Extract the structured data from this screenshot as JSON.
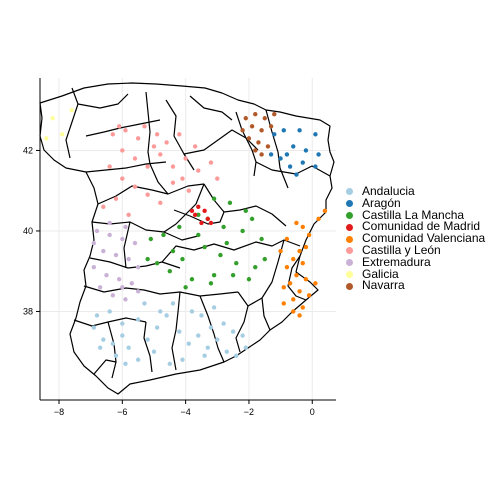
{
  "chart_data": {
    "type": "scatter",
    "title": "",
    "xlabel": "",
    "ylabel": "",
    "xlim": [
      -8.6,
      0.75
    ],
    "ylim": [
      35.8,
      43.8
    ],
    "x_ticks": [
      -8,
      -6,
      -4,
      -2,
      0
    ],
    "y_ticks": [
      38,
      40,
      42
    ],
    "x_tick_labels": [
      "−8",
      "−6",
      "−4",
      "−2",
      "0"
    ],
    "y_tick_labels": [
      "38",
      "40",
      "42"
    ],
    "grid": true,
    "legend_position": "right",
    "background": "province boundaries of mainland Spain",
    "series": [
      {
        "name": "Andalucia",
        "color": "#a6cee3",
        "points": [
          [
            -6.9,
            37.6
          ],
          [
            -6.6,
            37.3
          ],
          [
            -6.3,
            37.2
          ],
          [
            -6.0,
            37.4
          ],
          [
            -5.8,
            37.1
          ],
          [
            -6.2,
            36.9
          ],
          [
            -5.9,
            36.7
          ],
          [
            -5.5,
            36.8
          ],
          [
            -5.2,
            37.3
          ],
          [
            -4.9,
            37.6
          ],
          [
            -4.6,
            37.9
          ],
          [
            -4.2,
            37.5
          ],
          [
            -3.9,
            37.2
          ],
          [
            -3.6,
            37.4
          ],
          [
            -3.3,
            37.1
          ],
          [
            -3.0,
            37.3
          ],
          [
            -2.7,
            37.0
          ],
          [
            -2.4,
            36.9
          ],
          [
            -2.1,
            37.1
          ],
          [
            -3.8,
            38.0
          ],
          [
            -3.5,
            37.9
          ],
          [
            -3.1,
            38.1
          ],
          [
            -2.8,
            37.7
          ],
          [
            -4.4,
            38.2
          ],
          [
            -5.5,
            37.8
          ],
          [
            -6.4,
            38.0
          ],
          [
            -6.8,
            37.9
          ],
          [
            -6.0,
            37.7
          ],
          [
            -5.0,
            37.0
          ],
          [
            -4.5,
            36.7
          ],
          [
            -4.1,
            36.8
          ],
          [
            -3.4,
            36.9
          ],
          [
            -2.5,
            37.5
          ],
          [
            -2.2,
            37.4
          ],
          [
            -6.7,
            37.1
          ],
          [
            -5.3,
            38.2
          ],
          [
            -4.8,
            38.0
          ],
          [
            -3.2,
            37.6
          ]
        ]
      },
      {
        "name": "Aragón",
        "color": "#1f78b4",
        "points": [
          [
            -1.2,
            42.4
          ],
          [
            -0.9,
            42.5
          ],
          [
            -0.4,
            42.5
          ],
          [
            0.1,
            42.4
          ],
          [
            -0.6,
            42.1
          ],
          [
            -0.2,
            42.0
          ],
          [
            0.2,
            41.9
          ],
          [
            -0.8,
            41.9
          ],
          [
            -0.3,
            41.7
          ],
          [
            0.1,
            41.6
          ],
          [
            -1.3,
            41.9
          ],
          [
            -0.7,
            41.6
          ],
          [
            -0.5,
            41.4
          ],
          [
            -1.0,
            41.8
          ]
        ]
      },
      {
        "name": "Castilla La Mancha",
        "color": "#33a02c",
        "points": [
          [
            -3.1,
            40.8
          ],
          [
            -2.6,
            40.7
          ],
          [
            -2.1,
            40.5
          ],
          [
            -3.6,
            40.4
          ],
          [
            -4.2,
            40.1
          ],
          [
            -4.7,
            39.9
          ],
          [
            -5.1,
            39.8
          ],
          [
            -2.8,
            40.1
          ],
          [
            -2.2,
            40.0
          ],
          [
            -1.6,
            39.8
          ],
          [
            -3.4,
            39.6
          ],
          [
            -2.9,
            39.4
          ],
          [
            -2.4,
            39.2
          ],
          [
            -1.8,
            39.1
          ],
          [
            -4.1,
            39.3
          ],
          [
            -4.5,
            39.0
          ],
          [
            -3.8,
            38.8
          ],
          [
            -3.2,
            38.7
          ],
          [
            -2.0,
            38.8
          ],
          [
            -1.5,
            39.3
          ],
          [
            -4.9,
            39.2
          ],
          [
            -3.6,
            39.9
          ],
          [
            -2.5,
            38.9
          ],
          [
            -4.0,
            38.6
          ],
          [
            -1.9,
            40.3
          ],
          [
            -3.3,
            40.3
          ],
          [
            -2.7,
            39.7
          ],
          [
            -4.4,
            39.5
          ],
          [
            -5.2,
            39.3
          ],
          [
            -3.1,
            38.9
          ]
        ]
      },
      {
        "name": "Comunidad de Madrid",
        "color": "#e31a1c",
        "points": [
          [
            -3.7,
            40.4
          ],
          [
            -3.5,
            40.2
          ],
          [
            -3.3,
            40.3
          ],
          [
            -3.8,
            40.5
          ],
          [
            -3.6,
            40.6
          ],
          [
            -3.4,
            40.5
          ],
          [
            -3.2,
            40.2
          ]
        ]
      },
      {
        "name": "Comunidad Valenciana",
        "color": "#ff7f00",
        "points": [
          [
            -0.4,
            39.5
          ],
          [
            -0.6,
            39.3
          ],
          [
            -0.3,
            39.2
          ],
          [
            -0.8,
            39.1
          ],
          [
            -0.5,
            38.9
          ],
          [
            -0.2,
            38.8
          ],
          [
            -0.7,
            38.7
          ],
          [
            -0.4,
            38.5
          ],
          [
            -0.1,
            38.4
          ],
          [
            -0.6,
            38.3
          ],
          [
            -0.9,
            38.2
          ],
          [
            -0.3,
            38.1
          ],
          [
            0.1,
            38.7
          ],
          [
            -0.1,
            39.9
          ],
          [
            -0.3,
            40.1
          ],
          [
            0.2,
            40.3
          ],
          [
            -0.5,
            40.2
          ],
          [
            -0.8,
            39.8
          ],
          [
            -1.0,
            39.5
          ],
          [
            -0.9,
            38.6
          ],
          [
            -0.2,
            39.6
          ],
          [
            0.4,
            40.5
          ],
          [
            -0.6,
            38.0
          ],
          [
            -0.4,
            37.9
          ]
        ]
      },
      {
        "name": "Castilla y León",
        "color": "#fb9a99",
        "points": [
          [
            -6.3,
            42.4
          ],
          [
            -5.9,
            42.5
          ],
          [
            -5.5,
            42.3
          ],
          [
            -5.0,
            42.1
          ],
          [
            -4.6,
            42.2
          ],
          [
            -4.2,
            42.4
          ],
          [
            -6.0,
            42.0
          ],
          [
            -5.6,
            41.8
          ],
          [
            -5.2,
            41.6
          ],
          [
            -4.8,
            41.9
          ],
          [
            -4.4,
            41.6
          ],
          [
            -4.0,
            41.8
          ],
          [
            -3.6,
            41.5
          ],
          [
            -3.2,
            41.7
          ],
          [
            -6.4,
            41.6
          ],
          [
            -6.0,
            41.3
          ],
          [
            -5.6,
            41.1
          ],
          [
            -5.2,
            40.9
          ],
          [
            -4.8,
            40.7
          ],
          [
            -4.4,
            41.2
          ],
          [
            -3.9,
            41.0
          ],
          [
            -6.6,
            40.6
          ],
          [
            -6.2,
            40.8
          ],
          [
            -5.8,
            40.4
          ],
          [
            -6.1,
            42.6
          ],
          [
            -5.3,
            42.6
          ],
          [
            -4.9,
            42.4
          ],
          [
            -3.7,
            42.1
          ],
          [
            -3.0,
            41.3
          ],
          [
            -4.1,
            41.3
          ]
        ]
      },
      {
        "name": "Extremadura",
        "color": "#cab2d6",
        "points": [
          [
            -6.8,
            40.0
          ],
          [
            -6.4,
            39.9
          ],
          [
            -6.0,
            39.8
          ],
          [
            -5.6,
            39.7
          ],
          [
            -6.6,
            39.5
          ],
          [
            -6.2,
            39.4
          ],
          [
            -5.8,
            39.3
          ],
          [
            -6.9,
            39.1
          ],
          [
            -6.5,
            38.9
          ],
          [
            -6.1,
            38.8
          ],
          [
            -5.7,
            38.7
          ],
          [
            -6.7,
            38.6
          ],
          [
            -6.3,
            38.4
          ],
          [
            -5.9,
            38.3
          ],
          [
            -5.5,
            38.5
          ],
          [
            -6.4,
            40.2
          ],
          [
            -5.9,
            40.1
          ],
          [
            -6.9,
            39.7
          ],
          [
            -5.5,
            39.1
          ],
          [
            -6.0,
            38.6
          ]
        ]
      },
      {
        "name": "Galicia",
        "color": "#ffff99",
        "points": [
          [
            -7.6,
            43.0
          ],
          [
            -8.2,
            42.8
          ],
          [
            -7.9,
            42.4
          ],
          [
            -8.4,
            42.3
          ]
        ]
      },
      {
        "name": "Navarra",
        "color": "#b15928",
        "points": [
          [
            -2.1,
            42.8
          ],
          [
            -1.8,
            42.9
          ],
          [
            -1.5,
            42.8
          ],
          [
            -1.9,
            42.6
          ],
          [
            -1.6,
            42.5
          ],
          [
            -1.3,
            42.6
          ],
          [
            -2.0,
            42.3
          ],
          [
            -1.7,
            42.2
          ],
          [
            -1.4,
            42.1
          ],
          [
            -1.6,
            41.9
          ],
          [
            -2.2,
            42.5
          ],
          [
            -1.2,
            42.9
          ],
          [
            -1.8,
            42.0
          ]
        ]
      }
    ]
  }
}
